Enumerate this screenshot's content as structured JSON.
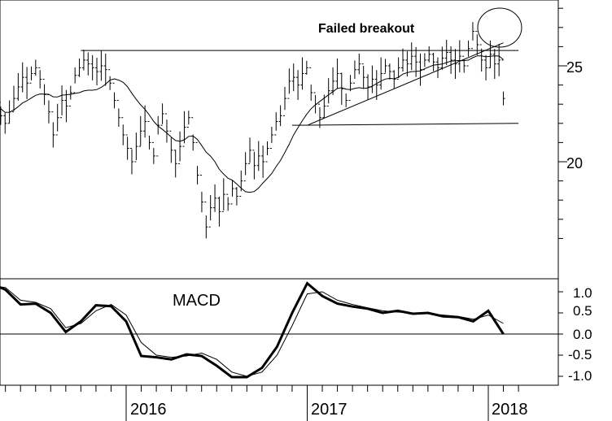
{
  "chart_data": [
    {
      "type": "ohlc",
      "annotation": "Failed breakout",
      "y_ticks": [
        "20",
        "25"
      ],
      "ylim": [
        15.5,
        28.5
      ],
      "x_ticks": [
        "2016",
        "2017",
        "2018"
      ],
      "x_range": [
        "2015-04",
        "2018-03"
      ],
      "moving_average_present": true,
      "resistance_line": {
        "from": [
          "2015-10",
          25.8
        ],
        "to": [
          "2018-03",
          25.8
        ]
      },
      "support_line": {
        "from": [
          "2016-12",
          21.9
        ],
        "to": [
          "2018-03",
          22.0
        ]
      },
      "rising_trendline": {
        "from": [
          "2017-01",
          21.9
        ],
        "to": [
          "2018-02",
          26.2
        ]
      },
      "weekly_close": [
        22.8,
        23.1,
        22.4,
        22.0,
        22.6,
        23.3,
        23.9,
        24.4,
        24.1,
        24.6,
        24.9,
        24.3,
        23.5,
        22.6,
        21.4,
        22.3,
        23.2,
        22.9,
        23.6,
        24.5,
        24.9,
        25.3,
        25.1,
        24.9,
        24.7,
        25.0,
        24.8,
        24.1,
        23.2,
        22.3,
        21.4,
        20.7,
        20.0,
        20.8,
        21.6,
        22.1,
        21.0,
        20.3,
        21.9,
        22.5,
        21.6,
        20.6,
        19.9,
        20.8,
        21.8,
        22.3,
        21.0,
        19.3,
        17.9,
        16.6,
        17.6,
        18.1,
        17.4,
        18.3,
        17.8,
        18.6,
        18.2,
        19.0,
        19.9,
        20.6,
        19.8,
        20.3,
        20.0,
        20.7,
        21.4,
        22.1,
        22.4,
        23.3,
        24.2,
        24.4,
        24.0,
        24.6,
        24.9,
        23.6,
        23.0,
        22.3,
        22.9,
        23.7,
        24.2,
        24.6,
        23.8,
        23.2,
        24.1,
        24.8,
        25.1,
        24.4,
        23.9,
        24.3,
        24.0,
        24.6,
        25.0,
        24.7,
        24.3,
        24.9,
        25.3,
        25.1,
        25.5,
        25.2,
        24.8,
        25.3,
        25.6,
        25.2,
        24.9,
        25.4,
        25.7,
        25.3,
        25.1,
        25.5,
        25.0,
        25.9,
        26.8,
        26.1,
        25.3,
        24.9,
        25.6,
        25.1,
        25.3,
        23.3
      ]
    },
    {
      "type": "line",
      "title": "MACD",
      "y_ticks": [
        "1.0",
        "0.5",
        "0.0",
        "-0.5",
        "-1.0"
      ],
      "ylim": [
        -1.25,
        1.45
      ],
      "zero_line": true,
      "series": [
        {
          "style": "thick",
          "x": [
            "2015-04",
            "2015-05",
            "2015-06",
            "2015-07",
            "2015-08",
            "2015-09",
            "2015-10",
            "2015-11",
            "2015-12",
            "2016-01",
            "2016-02",
            "2016-03",
            "2016-04",
            "2016-05",
            "2016-06",
            "2016-07",
            "2016-08",
            "2016-09",
            "2016-10",
            "2016-11",
            "2016-12",
            "2017-01",
            "2017-02",
            "2017-03",
            "2017-04",
            "2017-05",
            "2017-06",
            "2017-07",
            "2017-08",
            "2017-09",
            "2017-10",
            "2017-11",
            "2017-12",
            "2018-01",
            "2018-02"
          ],
          "values": [
            1.2,
            1.05,
            0.7,
            0.72,
            0.5,
            0.05,
            0.3,
            0.68,
            0.66,
            0.3,
            -0.52,
            -0.55,
            -0.6,
            -0.48,
            -0.52,
            -0.75,
            -1.02,
            -1.02,
            -0.8,
            -0.3,
            0.5,
            1.2,
            0.9,
            0.72,
            0.65,
            0.6,
            0.5,
            0.55,
            0.48,
            0.5,
            0.42,
            0.4,
            0.3,
            0.55,
            0.0
          ]
        },
        {
          "style": "thin",
          "x": [
            "2015-04",
            "2015-05",
            "2015-06",
            "2015-07",
            "2015-08",
            "2015-09",
            "2015-10",
            "2015-11",
            "2015-12",
            "2016-01",
            "2016-02",
            "2016-03",
            "2016-04",
            "2016-05",
            "2016-06",
            "2016-07",
            "2016-08",
            "2016-09",
            "2016-10",
            "2016-11",
            "2016-12",
            "2017-01",
            "2017-02",
            "2017-03",
            "2017-04",
            "2017-05",
            "2017-06",
            "2017-07",
            "2017-08",
            "2017-09",
            "2017-10",
            "2017-11",
            "2017-12",
            "2018-01",
            "2018-02"
          ],
          "values": [
            1.15,
            1.1,
            0.8,
            0.75,
            0.6,
            0.15,
            0.25,
            0.55,
            0.7,
            0.45,
            -0.2,
            -0.5,
            -0.55,
            -0.52,
            -0.45,
            -0.6,
            -0.9,
            -1.0,
            -0.9,
            -0.5,
            0.2,
            0.95,
            1.0,
            0.8,
            0.7,
            0.62,
            0.55,
            0.52,
            0.5,
            0.48,
            0.45,
            0.42,
            0.35,
            0.45,
            0.25
          ]
        }
      ]
    }
  ]
}
